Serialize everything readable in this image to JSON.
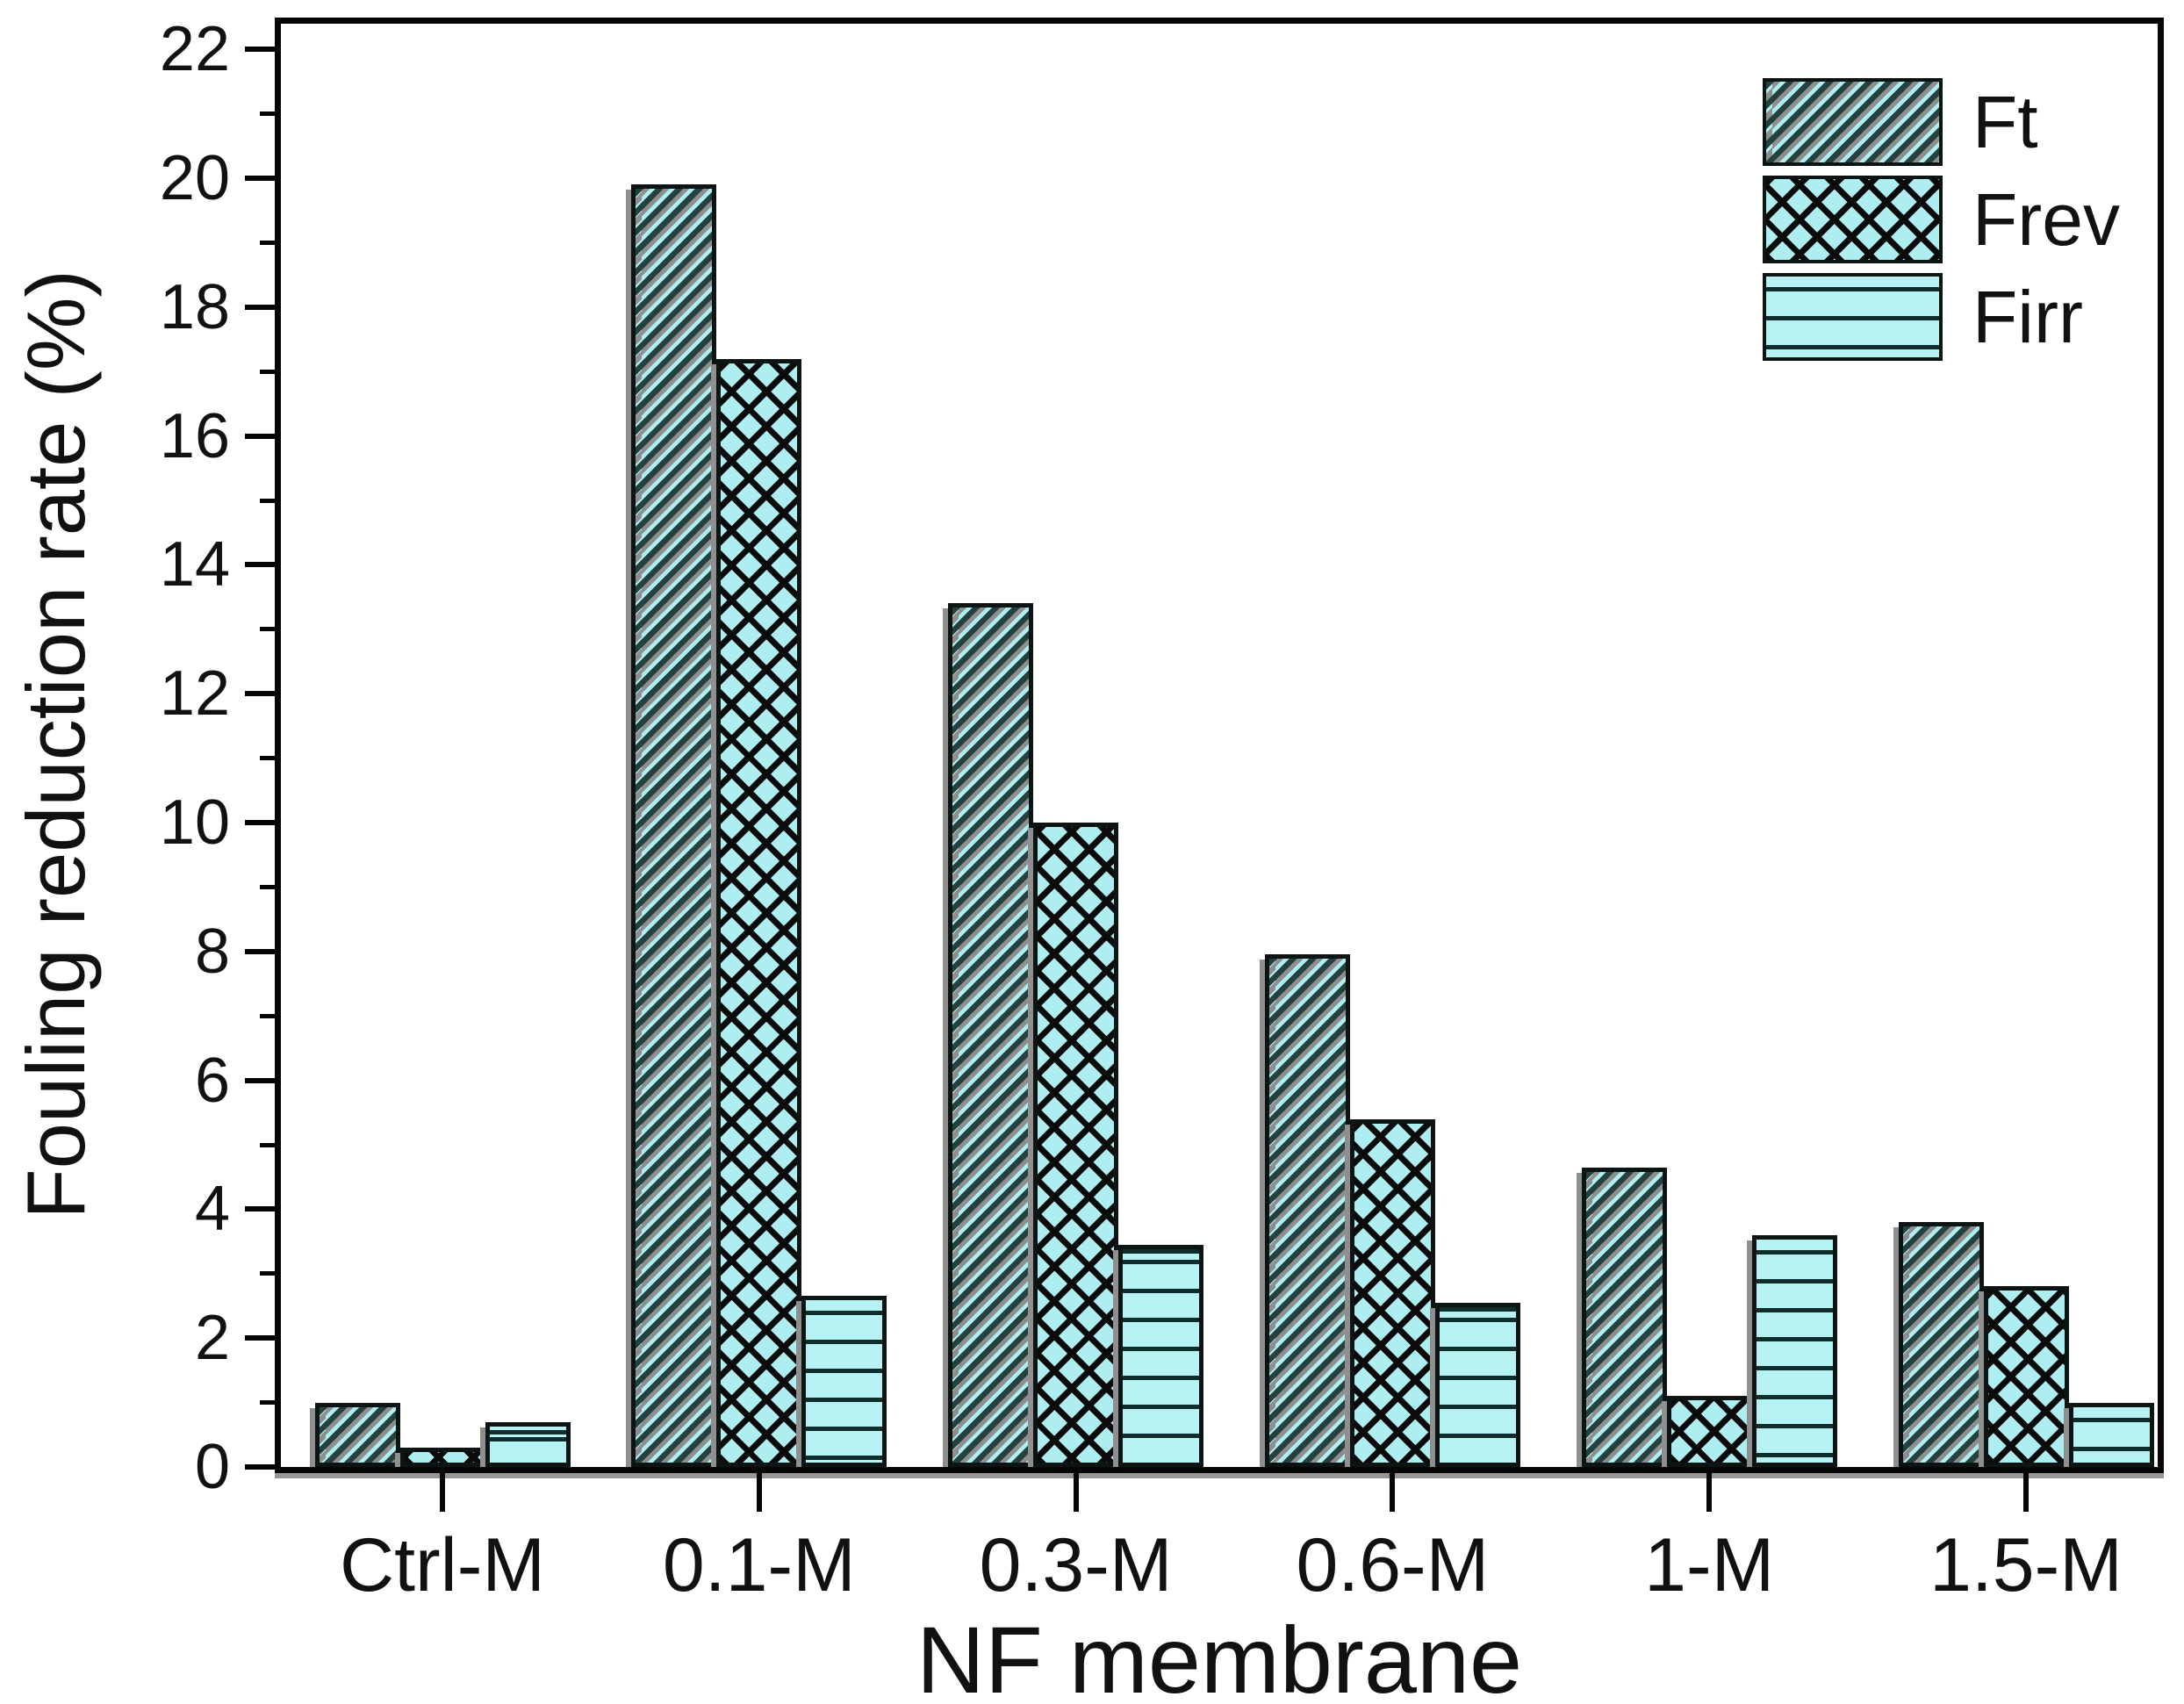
{
  "chart_data": {
    "type": "bar",
    "title": "",
    "xlabel": "NF membrane",
    "ylabel": "Fouling reduction rate (%)",
    "categories": [
      "Ctrl-M",
      "0.1-M",
      "0.3-M",
      "0.6-M",
      "1-M",
      "1.5-M"
    ],
    "series": [
      {
        "name": "Ft",
        "hatch": "diagonal",
        "values": [
          1.0,
          19.9,
          13.4,
          7.95,
          4.65,
          3.8
        ]
      },
      {
        "name": "Frev",
        "hatch": "cross",
        "values": [
          0.3,
          17.2,
          10.0,
          5.4,
          1.1,
          2.8
        ]
      },
      {
        "name": "Firr",
        "hatch": "horizontal",
        "values": [
          0.7,
          2.65,
          3.45,
          2.55,
          3.6,
          1.0
        ]
      }
    ],
    "ylim": [
      0,
      22.5
    ],
    "yticks": [
      0,
      2,
      4,
      6,
      8,
      10,
      12,
      14,
      16,
      18,
      20,
      22
    ],
    "ytick_labels": [
      "0",
      "2",
      "4",
      "6",
      "8",
      "10",
      "12",
      "14",
      "16",
      "18",
      "20",
      "22"
    ],
    "minor_ytick_values": [
      1,
      3,
      5,
      7,
      9,
      11,
      13,
      15,
      17,
      19,
      21
    ],
    "grid": false,
    "legend_position": "top-right-inside",
    "legend_entries": [
      "Ft",
      "Frev",
      "Firr"
    ],
    "colors": {
      "bar_fill": "#aeeef0",
      "hatch_diagonal": "#24413f",
      "hatch_cross": "#0b0b0b",
      "hatch_horizontal": "#0f2d2b",
      "bar_outline": "#0d1514",
      "shadow": "#8f8f8f",
      "axis": "#060606",
      "text": "#111111",
      "background": "#ffffff"
    }
  }
}
